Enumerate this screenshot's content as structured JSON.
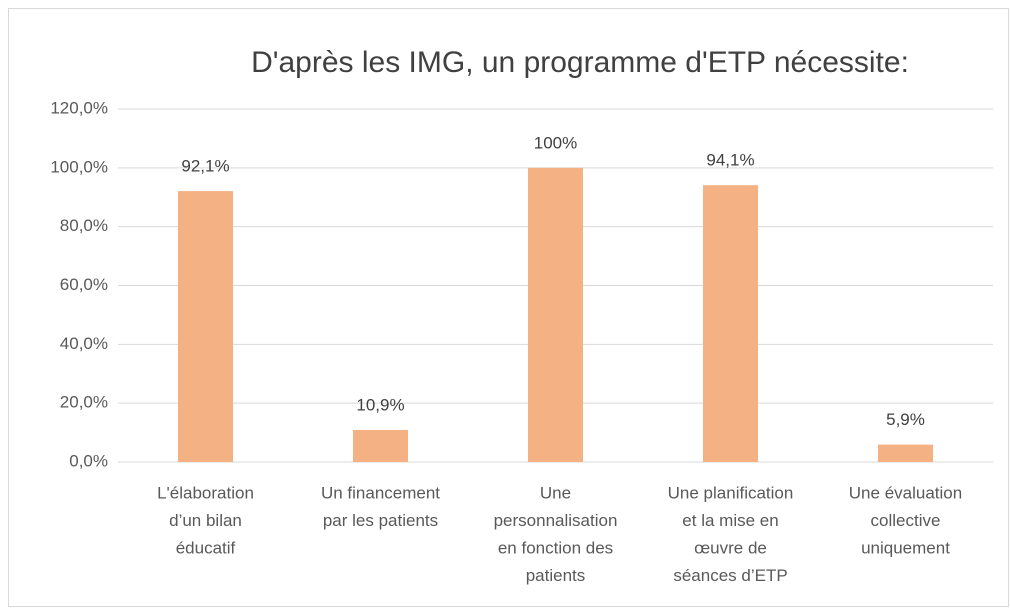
{
  "chart_data": {
    "type": "bar",
    "title": "D'après les IMG, un programme d'ETP nécessite:",
    "categories": [
      [
        "L'élaboration",
        "d’un bilan",
        "éducatif"
      ],
      [
        "Un financement",
        "par les patients"
      ],
      [
        "Une",
        "personnalisation",
        "en fonction des",
        "patients"
      ],
      [
        "Une planification",
        "et la mise en",
        "œuvre de",
        "séances d’ETP"
      ],
      [
        "Une évaluation",
        "collective",
        "uniquement"
      ]
    ],
    "values": [
      92.1,
      10.9,
      100,
      94.1,
      5.9
    ],
    "value_labels": [
      "92,1%",
      "10,9%",
      "100%",
      "94,1%",
      "5,9%"
    ],
    "color": "#f4b183",
    "ylim": [
      0,
      120
    ],
    "yticks": [
      {
        "value": 0,
        "label": "0,0%"
      },
      {
        "value": 20,
        "label": "20,0%"
      },
      {
        "value": 40,
        "label": "40,0%"
      },
      {
        "value": 60,
        "label": "60,0%"
      },
      {
        "value": 80,
        "label": "80,0%"
      },
      {
        "value": 100,
        "label": "100,0%"
      },
      {
        "value": 120,
        "label": "120,0%"
      }
    ],
    "grid": true
  }
}
